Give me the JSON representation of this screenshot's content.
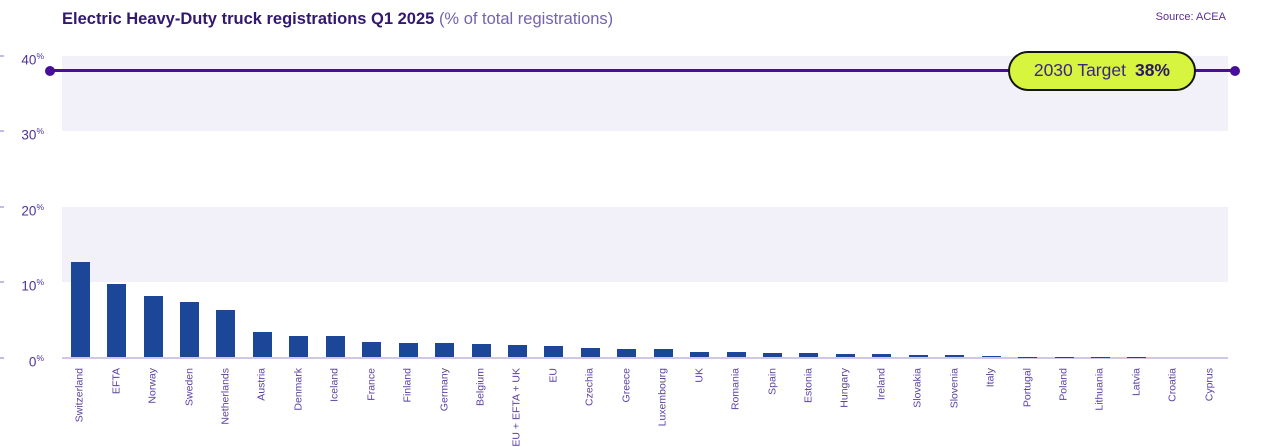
{
  "header": {
    "title": "Electric Heavy-Duty truck registrations Q1 2025",
    "subtitle": "(% of total registrations)",
    "source": "Source: ACEA"
  },
  "target": {
    "label": "2030 Target",
    "value": 38,
    "value_label": "38%"
  },
  "chart_data": {
    "type": "bar",
    "title": "Electric Heavy-Duty truck registrations Q1 2025",
    "subtitle": "(% of total registrations)",
    "xlabel": "",
    "ylabel": "% of total registrations",
    "unit": "%",
    "ylim": [
      0,
      40
    ],
    "yticks": [
      0,
      10,
      20,
      30,
      40
    ],
    "grid_bands": [
      [
        10,
        20
      ],
      [
        30,
        40
      ]
    ],
    "legend": null,
    "target_line": {
      "label": "2030 Target",
      "value": 38
    },
    "categories": [
      "Switzerland",
      "EFTA",
      "Norway",
      "Sweden",
      "Netherlands",
      "Austria",
      "Denmark",
      "Iceland",
      "France",
      "Finland",
      "Germany",
      "Belgium",
      "EU + EFTA + UK",
      "EU",
      "Czechia",
      "Greece",
      "Luxembourg",
      "UK",
      "Romania",
      "Spain",
      "Estonia",
      "Hungary",
      "Ireland",
      "Slovakia",
      "Slovenia",
      "Italy",
      "Portugal",
      "Poland",
      "Lithuania",
      "Latvia",
      "Croatia",
      "Cyprus"
    ],
    "values": [
      12.6,
      9.8,
      8.1,
      7.3,
      6.3,
      3.4,
      2.8,
      2.8,
      2.1,
      1.9,
      1.9,
      1.8,
      1.7,
      1.5,
      1.2,
      1.1,
      1.1,
      0.7,
      0.7,
      0.55,
      0.55,
      0.5,
      0.4,
      0.3,
      0.3,
      0.25,
      0.1,
      0.1,
      0.1,
      0.03,
      0,
      0
    ]
  },
  "colors": {
    "bar": "#1c4799",
    "band": "#f2f0f8",
    "target_line": "#470e9b",
    "pill_bg": "#d7f43e",
    "pill_border": "#141414",
    "title": "#32186e",
    "subtitle": "#7463ad",
    "axis_label": "#4e339e",
    "x_label": "#5c41a5",
    "baseline": "#cfc6e8"
  }
}
